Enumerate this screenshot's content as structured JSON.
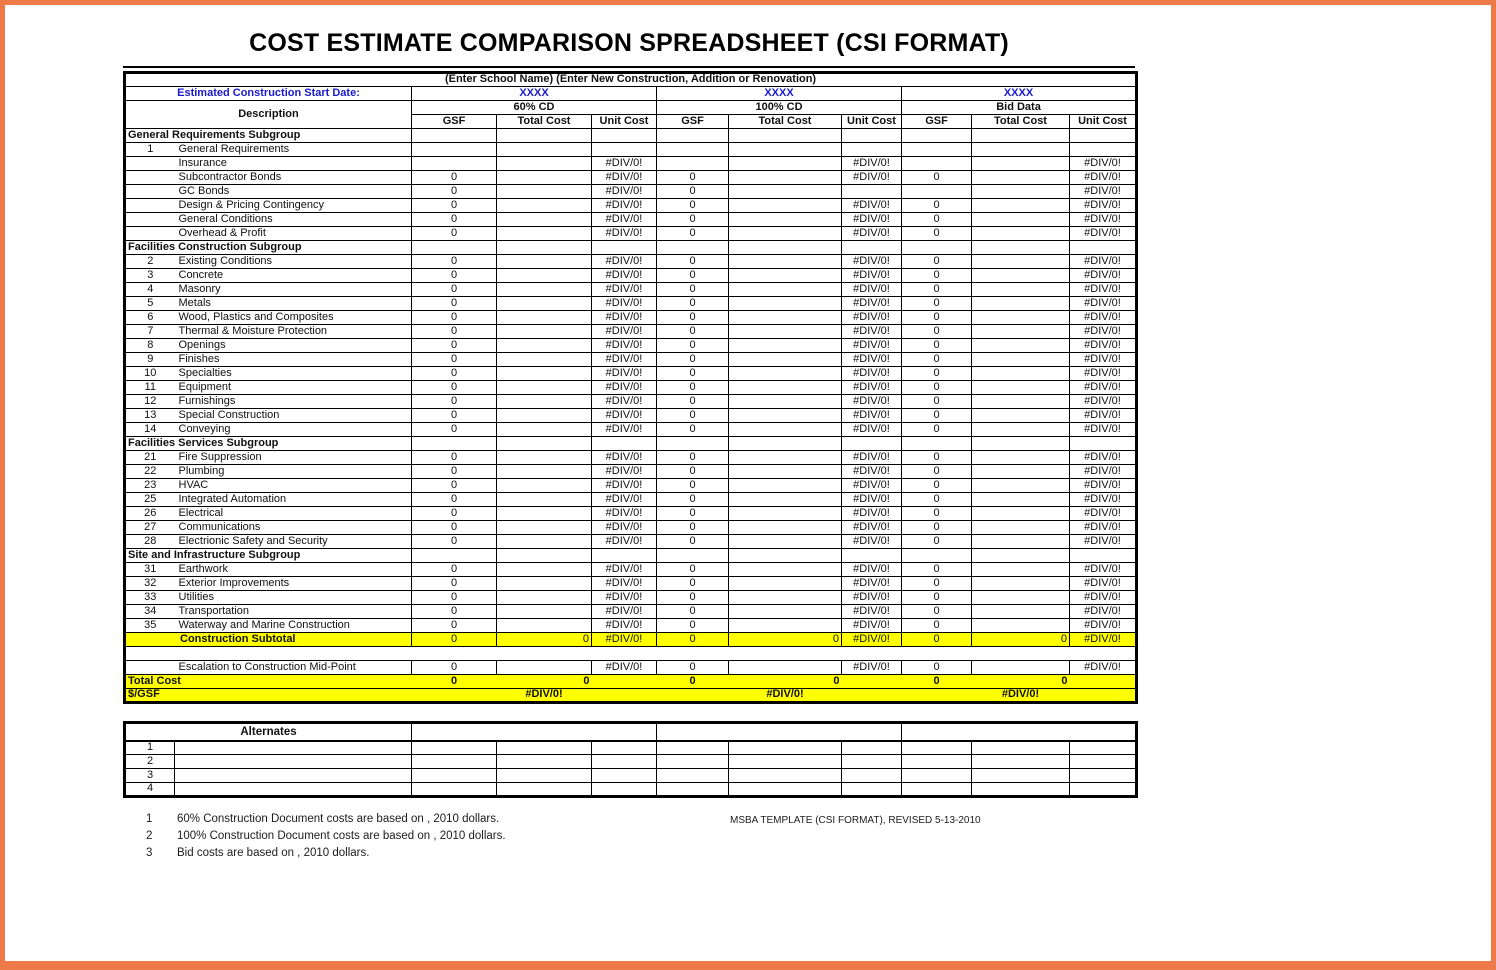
{
  "title": "COST ESTIMATE COMPARISON SPREADSHEET (CSI FORMAT)",
  "colors": {
    "frame_orange": "#ed7a48",
    "highlight_yellow": "#ffff00",
    "blue_text": "#1a1acc",
    "border_black": "#000000"
  },
  "header": {
    "school_line": "(Enter School Name) (Enter New Construction, Addition or Renovation)",
    "start_date_label": "Estimated Construction Start Date:",
    "start_date_values": [
      "XXXX",
      "XXXX",
      "XXXX"
    ],
    "group_labels": [
      "60% CD",
      "100% CD",
      "Bid Data"
    ],
    "description_label": "Description",
    "sub_columns": [
      "GSF",
      "Total Cost",
      "Unit Cost"
    ]
  },
  "table": {
    "rows": [
      {
        "t": "sub",
        "label": "General Requirements Subgroup"
      },
      {
        "t": "item",
        "num": "1",
        "label": "General Requirements",
        "g": [
          [
            "",
            "",
            ""
          ],
          [
            "",
            "",
            ""
          ],
          [
            "",
            "",
            ""
          ]
        ]
      },
      {
        "t": "item",
        "num": "",
        "label": "Insurance",
        "g": [
          [
            "",
            "",
            "#DIV/0!"
          ],
          [
            "",
            "",
            "#DIV/0!"
          ],
          [
            "",
            "",
            "#DIV/0!"
          ]
        ]
      },
      {
        "t": "item",
        "num": "",
        "label": "Subcontractor Bonds",
        "g": [
          [
            "0",
            "",
            "#DIV/0!"
          ],
          [
            "0",
            "",
            "#DIV/0!"
          ],
          [
            "0",
            "",
            "#DIV/0!"
          ]
        ]
      },
      {
        "t": "item",
        "num": "",
        "label": "GC Bonds",
        "g": [
          [
            "0",
            "",
            "#DIV/0!"
          ],
          [
            "0",
            "",
            ""
          ],
          [
            "",
            "",
            "#DIV/0!"
          ]
        ]
      },
      {
        "t": "item",
        "num": "",
        "label": "Design & Pricing Contingency",
        "g": [
          [
            "0",
            "",
            "#DIV/0!"
          ],
          [
            "0",
            "",
            "#DIV/0!"
          ],
          [
            "0",
            "",
            "#DIV/0!"
          ]
        ]
      },
      {
        "t": "item",
        "num": "",
        "label": "General Conditions",
        "g": [
          [
            "0",
            "",
            "#DIV/0!"
          ],
          [
            "0",
            "",
            "#DIV/0!"
          ],
          [
            "0",
            "",
            "#DIV/0!"
          ]
        ]
      },
      {
        "t": "item",
        "num": "",
        "label": "Overhead & Profit",
        "g": [
          [
            "0",
            "",
            "#DIV/0!"
          ],
          [
            "0",
            "",
            "#DIV/0!"
          ],
          [
            "0",
            "",
            "#DIV/0!"
          ]
        ]
      },
      {
        "t": "sub",
        "label": "Facilities Construction Subgroup"
      },
      {
        "t": "item",
        "num": "2",
        "label": "Existing Conditions",
        "g": [
          [
            "0",
            "",
            "#DIV/0!"
          ],
          [
            "0",
            "",
            "#DIV/0!"
          ],
          [
            "0",
            "",
            "#DIV/0!"
          ]
        ]
      },
      {
        "t": "item",
        "num": "3",
        "label": "Concrete",
        "g": [
          [
            "0",
            "",
            "#DIV/0!"
          ],
          [
            "0",
            "",
            "#DIV/0!"
          ],
          [
            "0",
            "",
            "#DIV/0!"
          ]
        ]
      },
      {
        "t": "item",
        "num": "4",
        "label": "Masonry",
        "g": [
          [
            "0",
            "",
            "#DIV/0!"
          ],
          [
            "0",
            "",
            "#DIV/0!"
          ],
          [
            "0",
            "",
            "#DIV/0!"
          ]
        ]
      },
      {
        "t": "item",
        "num": "5",
        "label": "Metals",
        "g": [
          [
            "0",
            "",
            "#DIV/0!"
          ],
          [
            "0",
            "",
            "#DIV/0!"
          ],
          [
            "0",
            "",
            "#DIV/0!"
          ]
        ]
      },
      {
        "t": "item",
        "num": "6",
        "label": "Wood, Plastics and Composites",
        "g": [
          [
            "0",
            "",
            "#DIV/0!"
          ],
          [
            "0",
            "",
            "#DIV/0!"
          ],
          [
            "0",
            "",
            "#DIV/0!"
          ]
        ]
      },
      {
        "t": "item",
        "num": "7",
        "label": "Thermal & Moisture Protection",
        "g": [
          [
            "0",
            "",
            "#DIV/0!"
          ],
          [
            "0",
            "",
            "#DIV/0!"
          ],
          [
            "0",
            "",
            "#DIV/0!"
          ]
        ]
      },
      {
        "t": "item",
        "num": "8",
        "label": "Openings",
        "g": [
          [
            "0",
            "",
            "#DIV/0!"
          ],
          [
            "0",
            "",
            "#DIV/0!"
          ],
          [
            "0",
            "",
            "#DIV/0!"
          ]
        ]
      },
      {
        "t": "item",
        "num": "9",
        "label": "Finishes",
        "g": [
          [
            "0",
            "",
            "#DIV/0!"
          ],
          [
            "0",
            "",
            "#DIV/0!"
          ],
          [
            "0",
            "",
            "#DIV/0!"
          ]
        ]
      },
      {
        "t": "item",
        "num": "10",
        "label": "Specialties",
        "g": [
          [
            "0",
            "",
            "#DIV/0!"
          ],
          [
            "0",
            "",
            "#DIV/0!"
          ],
          [
            "0",
            "",
            "#DIV/0!"
          ]
        ]
      },
      {
        "t": "item",
        "num": "11",
        "label": "Equipment",
        "g": [
          [
            "0",
            "",
            "#DIV/0!"
          ],
          [
            "0",
            "",
            "#DIV/0!"
          ],
          [
            "0",
            "",
            "#DIV/0!"
          ]
        ]
      },
      {
        "t": "item",
        "num": "12",
        "label": "Furnishings",
        "g": [
          [
            "0",
            "",
            "#DIV/0!"
          ],
          [
            "0",
            "",
            "#DIV/0!"
          ],
          [
            "0",
            "",
            "#DIV/0!"
          ]
        ]
      },
      {
        "t": "item",
        "num": "13",
        "label": "Special Construction",
        "g": [
          [
            "0",
            "",
            "#DIV/0!"
          ],
          [
            "0",
            "",
            "#DIV/0!"
          ],
          [
            "0",
            "",
            "#DIV/0!"
          ]
        ]
      },
      {
        "t": "item",
        "num": "14",
        "label": "Conveying",
        "g": [
          [
            "0",
            "",
            "#DIV/0!"
          ],
          [
            "0",
            "",
            "#DIV/0!"
          ],
          [
            "0",
            "",
            "#DIV/0!"
          ]
        ]
      },
      {
        "t": "sub",
        "label": "Facilities Services Subgroup"
      },
      {
        "t": "item",
        "num": "21",
        "label": "Fire Suppression",
        "g": [
          [
            "0",
            "",
            "#DIV/0!"
          ],
          [
            "0",
            "",
            "#DIV/0!"
          ],
          [
            "0",
            "",
            "#DIV/0!"
          ]
        ]
      },
      {
        "t": "item",
        "num": "22",
        "label": "Plumbing",
        "g": [
          [
            "0",
            "",
            "#DIV/0!"
          ],
          [
            "0",
            "",
            "#DIV/0!"
          ],
          [
            "0",
            "",
            "#DIV/0!"
          ]
        ]
      },
      {
        "t": "item",
        "num": "23",
        "label": "HVAC",
        "g": [
          [
            "0",
            "",
            "#DIV/0!"
          ],
          [
            "0",
            "",
            "#DIV/0!"
          ],
          [
            "0",
            "",
            "#DIV/0!"
          ]
        ]
      },
      {
        "t": "item",
        "num": "25",
        "label": "Integrated Automation",
        "g": [
          [
            "0",
            "",
            "#DIV/0!"
          ],
          [
            "0",
            "",
            "#DIV/0!"
          ],
          [
            "0",
            "",
            "#DIV/0!"
          ]
        ]
      },
      {
        "t": "item",
        "num": "26",
        "label": "Electrical",
        "g": [
          [
            "0",
            "",
            "#DIV/0!"
          ],
          [
            "0",
            "",
            "#DIV/0!"
          ],
          [
            "0",
            "",
            "#DIV/0!"
          ]
        ]
      },
      {
        "t": "item",
        "num": "27",
        "label": "Communications",
        "g": [
          [
            "0",
            "",
            "#DIV/0!"
          ],
          [
            "0",
            "",
            "#DIV/0!"
          ],
          [
            "0",
            "",
            "#DIV/0!"
          ]
        ]
      },
      {
        "t": "item",
        "num": "28",
        "label": "Electrionic Safety and Security",
        "g": [
          [
            "0",
            "",
            "#DIV/0!"
          ],
          [
            "0",
            "",
            "#DIV/0!"
          ],
          [
            "0",
            "",
            "#DIV/0!"
          ]
        ]
      },
      {
        "t": "sub",
        "label": "Site and Infrastructure Subgroup"
      },
      {
        "t": "item",
        "num": "31",
        "label": "Earthwork",
        "g": [
          [
            "0",
            "",
            "#DIV/0!"
          ],
          [
            "0",
            "",
            "#DIV/0!"
          ],
          [
            "0",
            "",
            "#DIV/0!"
          ]
        ]
      },
      {
        "t": "item",
        "num": "32",
        "label": "Exterior Improvements",
        "g": [
          [
            "0",
            "",
            "#DIV/0!"
          ],
          [
            "0",
            "",
            "#DIV/0!"
          ],
          [
            "0",
            "",
            "#DIV/0!"
          ]
        ]
      },
      {
        "t": "item",
        "num": "33",
        "label": "Utilities",
        "g": [
          [
            "0",
            "",
            "#DIV/0!"
          ],
          [
            "0",
            "",
            "#DIV/0!"
          ],
          [
            "0",
            "",
            "#DIV/0!"
          ]
        ]
      },
      {
        "t": "item",
        "num": "34",
        "label": "Transportation",
        "g": [
          [
            "0",
            "",
            "#DIV/0!"
          ],
          [
            "0",
            "",
            "#DIV/0!"
          ],
          [
            "0",
            "",
            "#DIV/0!"
          ]
        ]
      },
      {
        "t": "item",
        "num": "35",
        "label": "Waterway and Marine Construction",
        "g": [
          [
            "0",
            "",
            "#DIV/0!"
          ],
          [
            "0",
            "",
            "#DIV/0!"
          ],
          [
            "0",
            "",
            "#DIV/0!"
          ]
        ]
      },
      {
        "t": "subtotal",
        "label": "Construction Subtotal",
        "g": [
          [
            "0",
            "0",
            "#DIV/0!"
          ],
          [
            "0",
            "0",
            "#DIV/0!"
          ],
          [
            "0",
            "0",
            "#DIV/0!"
          ]
        ]
      },
      {
        "t": "spacer"
      },
      {
        "t": "esc",
        "num": "",
        "label": "Escalation to Construction Mid-Point",
        "g": [
          [
            "0",
            "",
            "#DIV/0!"
          ],
          [
            "0",
            "",
            "#DIV/0!"
          ],
          [
            "0",
            "",
            "#DIV/0!"
          ]
        ]
      },
      {
        "t": "total",
        "label": "Total Cost",
        "g": [
          [
            "0",
            "0",
            ""
          ],
          [
            "0",
            "0",
            ""
          ],
          [
            "0",
            "0",
            ""
          ]
        ]
      },
      {
        "t": "persf",
        "label": "$/GSF",
        "values": [
          "#DIV/0!",
          "#DIV/0!",
          "#DIV/0!"
        ]
      }
    ]
  },
  "alternates": {
    "title": "Alternates",
    "row_numbers": [
      "1",
      "2",
      "3",
      "4"
    ]
  },
  "footnotes": {
    "items": [
      {
        "num": "1",
        "text": "60% Construction Document costs are based on  , 2010 dollars."
      },
      {
        "num": "2",
        "text": "100% Construction Document costs are based on  , 2010 dollars."
      },
      {
        "num": "3",
        "text": "Bid costs are based on  , 2010 dollars."
      }
    ],
    "template_note": "MSBA TEMPLATE (CSI FORMAT), REVISED  5-13-2010"
  }
}
